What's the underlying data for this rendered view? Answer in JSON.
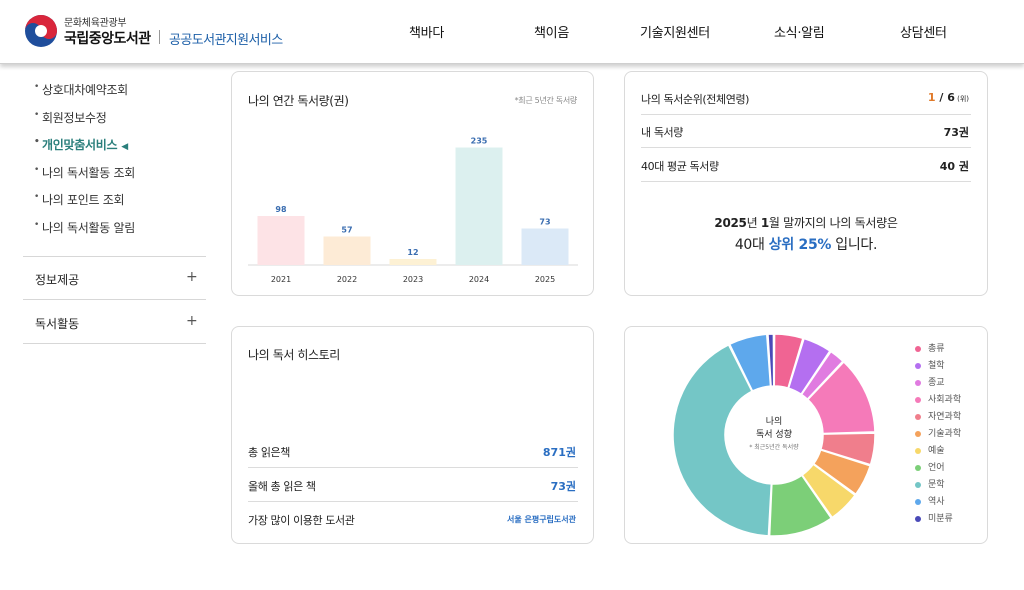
{
  "header": {
    "org_sub": "문화체육관광부",
    "org_name": "국립중앙도서관",
    "service_name": "공공도서관지원서비스",
    "nav": [
      "책바다",
      "책이음",
      "기술지원센터",
      "소식·알림",
      "상담센터"
    ]
  },
  "sidebar": {
    "items": [
      {
        "label": "상호대차예약조회",
        "active": false
      },
      {
        "label": "회원정보수정",
        "active": false
      },
      {
        "label": "개인맞춤서비스",
        "active": true
      },
      {
        "label": "나의 독서활동 조회",
        "active": false
      },
      {
        "label": "나의 포인트 조회",
        "active": false
      },
      {
        "label": "나의 독서활동 알림",
        "active": false
      }
    ],
    "sections": [
      "정보제공",
      "독서활동"
    ],
    "expand_symbol": "+",
    "active_arrow": "◀"
  },
  "annual": {
    "title": "나의 연간 독서량(권)",
    "note": "*최근 5년간 독서량"
  },
  "rank": {
    "rows": [
      {
        "label": "나의 독서순위(전체연령)",
        "current": "1",
        "total": " / 6",
        "unit": " (위)"
      },
      {
        "label": "내 독서량",
        "value": "73권"
      },
      {
        "label": "40대 평균 독서량",
        "value": "40 권"
      }
    ],
    "summary_line1_pre": "2025",
    "summary_line1_mid": "년 ",
    "summary_line1_month": "1",
    "summary_line1_post": "월 말까지의 나의 독서량은",
    "summary_line2_pre": "40대 ",
    "summary_line2_hl": "상위 25%",
    "summary_line2_post": " 입니다."
  },
  "history": {
    "title": "나의 독서 히스토리",
    "rows": [
      {
        "label": "총 읽은책",
        "value": "871권"
      },
      {
        "label": "올해 총 읽은 책",
        "value": "73권"
      },
      {
        "label": "가장 많이 이용한 도서관",
        "value": "서울 은평구립도서관"
      }
    ]
  },
  "donut": {
    "center_title_1": "나의",
    "center_title_2": "독서 성향",
    "center_note": "* 최근5년간 독서량"
  },
  "chart_data": [
    {
      "type": "bar",
      "title": "나의 연간 독서량(권)",
      "categories": [
        "2021",
        "2022",
        "2023",
        "2024",
        "2025"
      ],
      "values": [
        98,
        57,
        12,
        235,
        73
      ],
      "colors": [
        "#fde3e6",
        "#fdebd6",
        "#fdf1d4",
        "#dcf0ef",
        "#dbe9f7"
      ],
      "label_color": "#3a6db0",
      "ylim": [
        0,
        260
      ]
    },
    {
      "type": "pie",
      "title": "나의 독서 성향",
      "categories": [
        "총류",
        "철학",
        "종교",
        "사회과학",
        "자연과학",
        "기술과학",
        "예술",
        "언어",
        "문학",
        "역사",
        "미분류"
      ],
      "values": [
        4.5,
        4.5,
        2.5,
        12,
        5,
        5,
        5,
        10,
        40,
        6,
        1
      ],
      "colors": [
        "#f06493",
        "#b46ff0",
        "#e07be0",
        "#f57ab9",
        "#f07e8c",
        "#f4a25c",
        "#f7d86a",
        "#7ccf78",
        "#74c6c6",
        "#5ea8ec",
        "#4a4ab8"
      ]
    }
  ]
}
